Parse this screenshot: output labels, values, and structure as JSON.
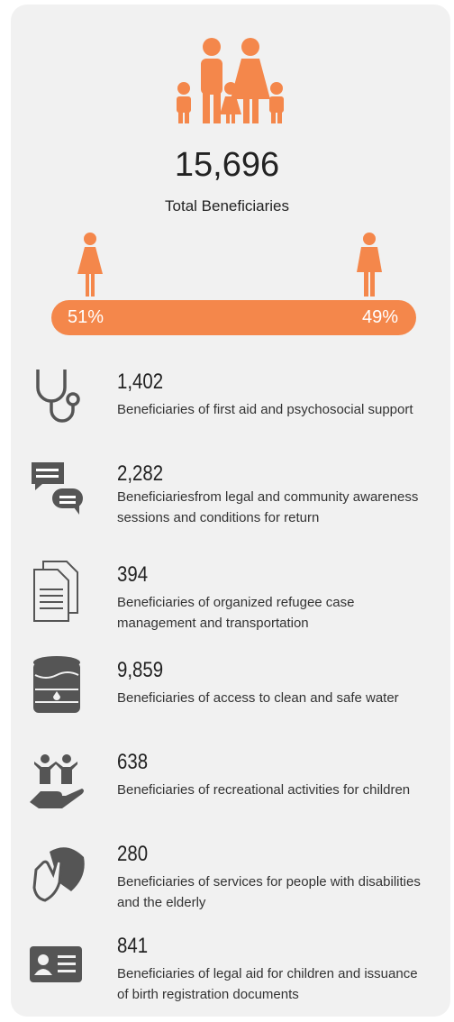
{
  "header": {
    "total": "15,696",
    "label": "Total Beneficiaries",
    "female_share": "51%",
    "male_share": "49%"
  },
  "items": [
    {
      "number": "1,402",
      "description": "Beneficiaries of first aid and psychosocial support"
    },
    {
      "number": "2,282",
      "description": "Beneficiariesfrom legal and community awareness sessions and conditions for return"
    },
    {
      "number": "394",
      "description": "Beneficiaries of organized refugee case management and transportation"
    },
    {
      "number": "9,859",
      "description": "Beneficiaries of access to clean and safe water"
    },
    {
      "number": "638",
      "description": "Beneficiaries of recreational activities for children"
    },
    {
      "number": "280",
      "description": "Beneficiaries of services for people with disabilities and the elderly"
    },
    {
      "number": "841",
      "description": "Beneficiaries of legal aid for children and issuance of birth registration documents"
    }
  ]
}
